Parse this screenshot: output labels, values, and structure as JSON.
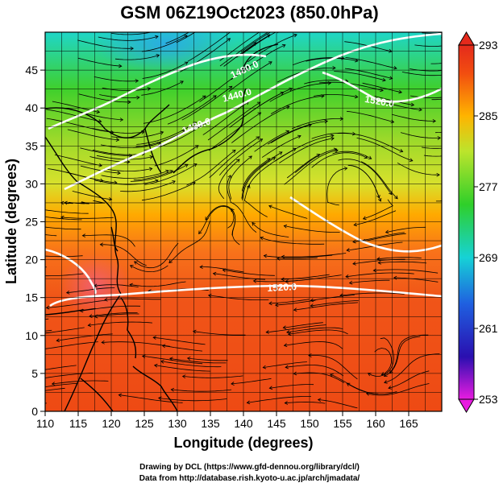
{
  "title": "GSM 06Z19Oct2023 (850.0hPa)",
  "axes": {
    "xlabel": "Longitude (degrees)",
    "ylabel": "Latitude  (degrees)",
    "xticks": [
      110,
      115,
      120,
      125,
      130,
      135,
      140,
      145,
      150,
      155,
      160,
      165
    ],
    "yticks": [
      0,
      5,
      10,
      15,
      20,
      25,
      30,
      35,
      40,
      45
    ],
    "xlim": [
      110,
      170
    ],
    "ylim": [
      0,
      50
    ]
  },
  "colorbar": {
    "ticks": [
      253,
      261,
      269,
      277,
      285,
      293
    ],
    "min": 253,
    "max": 293,
    "stops": [
      "#e81ce0",
      "#1b10b8",
      "#1f7be0",
      "#15d0e0",
      "#2fd030",
      "#bde52f",
      "#ffb000",
      "#f04a0c",
      "#e8281e"
    ]
  },
  "contour_labels": [
    {
      "text": "1520.0"
    },
    {
      "text": "1520.0"
    },
    {
      "text": "1480.0"
    },
    {
      "text": "1480.0"
    },
    {
      "text": "1440.0"
    }
  ],
  "credits": {
    "line1": "Drawing by DCL (https://www.gfd-dennou.org/library/dcl/)",
    "line2": "Data from http://database.rish.kyoto-u.ac.jp/arch/jmadata/"
  }
}
